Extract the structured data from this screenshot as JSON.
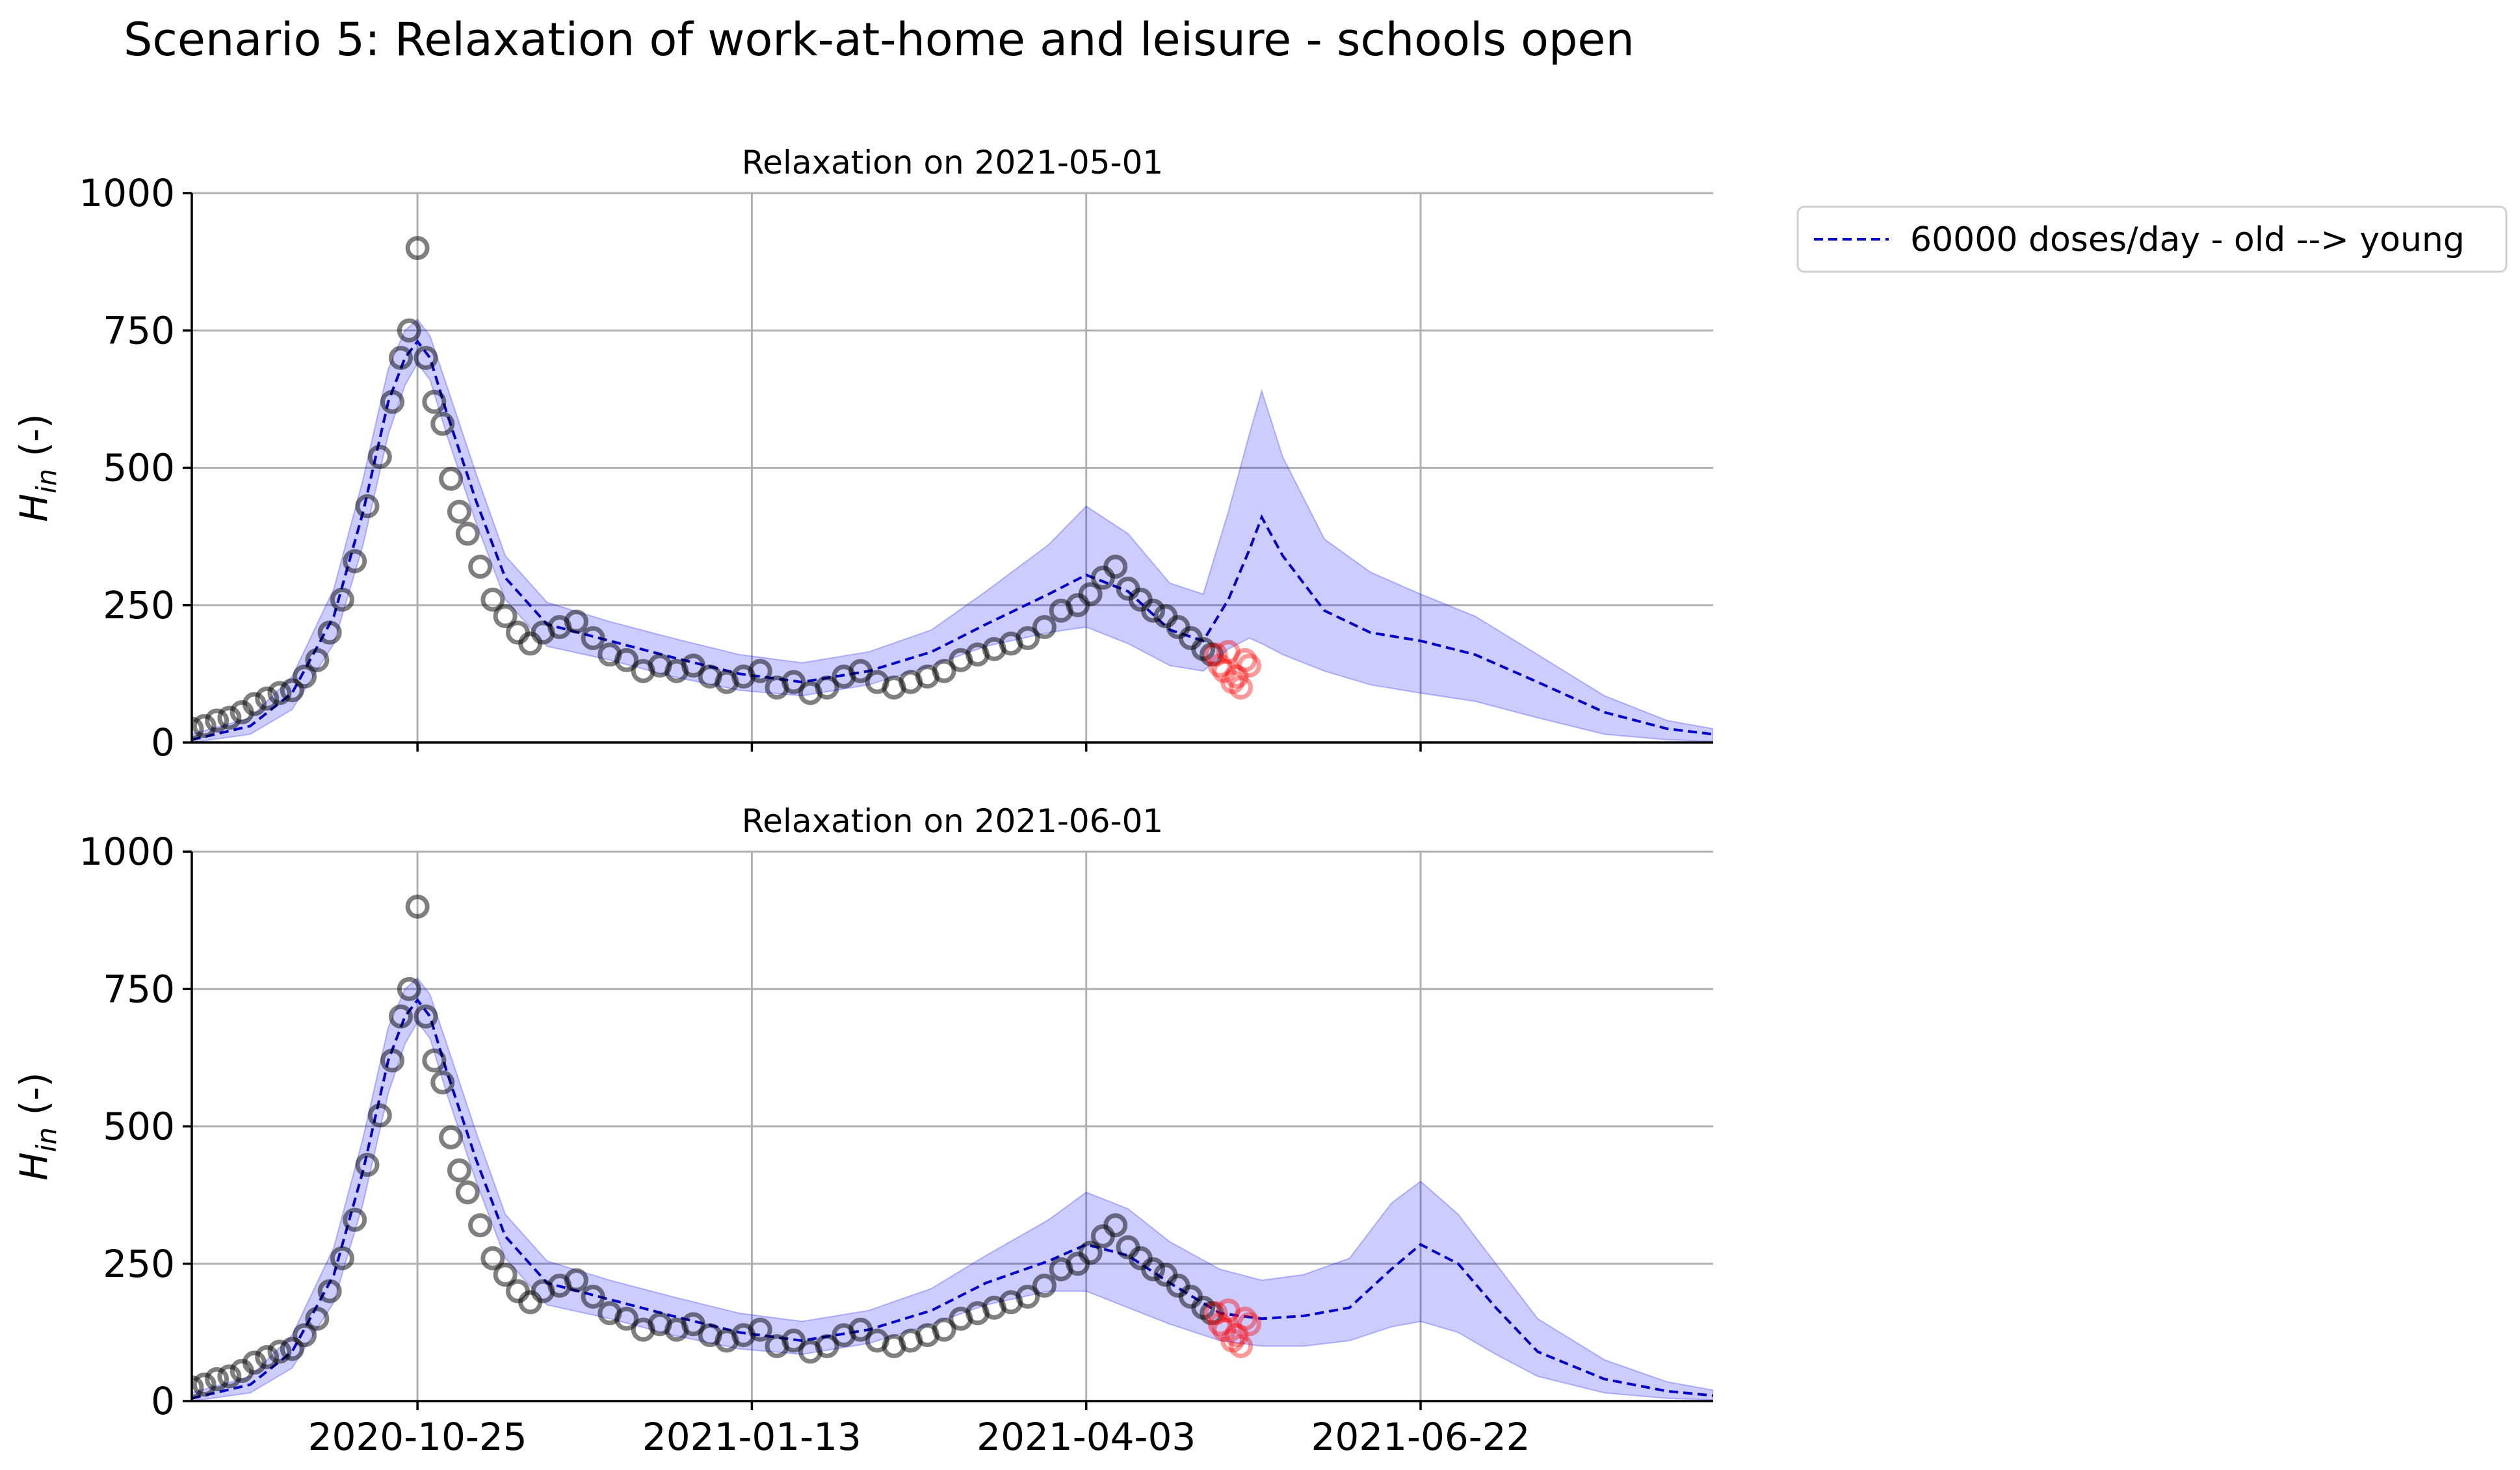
{
  "figure": {
    "title": "Scenario 5: Relaxation of work-at-home and leisure - schools open",
    "legend": {
      "placement": "upper-right-outside",
      "entries": [
        "60000 doses/day - old --> young"
      ]
    },
    "colors": {
      "model": "#0000cc",
      "band": "#0000ff",
      "observed": "#000000",
      "observed_new": "#ff0000",
      "grid": "#b0b0b0"
    }
  },
  "chart_data": [
    {
      "type": "line",
      "title": "Relaxation on 2021-05-01",
      "xlabel": "",
      "ylabel": "H_in (-)",
      "ylabel_main": "H",
      "ylabel_sub": "in",
      "ylabel_unit": " (-)",
      "xlim": [
        "2020-09-01",
        "2021-08-31"
      ],
      "ylim": [
        0,
        1000
      ],
      "yticks": [
        0,
        250,
        500,
        750,
        1000
      ],
      "xticks": [
        "2020-10-25",
        "2021-01-13",
        "2021-04-03",
        "2021-06-22"
      ],
      "show_xtick_labels": false,
      "grid": true,
      "series": [
        {
          "name": "60000 doses/day - old --> young",
          "style": "dashed",
          "x": [
            "2020-09-01",
            "2020-09-15",
            "2020-09-25",
            "2020-10-05",
            "2020-10-12",
            "2020-10-18",
            "2020-10-22",
            "2020-10-25",
            "2020-10-28",
            "2020-11-01",
            "2020-11-08",
            "2020-11-15",
            "2020-11-25",
            "2020-12-10",
            "2020-12-25",
            "2021-01-10",
            "2021-01-25",
            "2021-02-10",
            "2021-02-25",
            "2021-03-10",
            "2021-03-25",
            "2021-04-03",
            "2021-04-13",
            "2021-04-23",
            "2021-05-01",
            "2021-05-07",
            "2021-05-12",
            "2021-05-15",
            "2021-05-20",
            "2021-05-30",
            "2021-06-10",
            "2021-06-22",
            "2021-07-05",
            "2021-07-20",
            "2021-08-05",
            "2021-08-20",
            "2021-08-31"
          ],
          "y": [
            5,
            30,
            90,
            230,
            420,
            620,
            700,
            730,
            700,
            600,
            440,
            300,
            215,
            185,
            155,
            125,
            110,
            130,
            165,
            215,
            270,
            305,
            275,
            205,
            185,
            260,
            350,
            410,
            340,
            240,
            200,
            185,
            160,
            110,
            55,
            25,
            15
          ],
          "band_lower": [
            0,
            15,
            60,
            180,
            360,
            560,
            650,
            690,
            660,
            560,
            400,
            260,
            175,
            150,
            120,
            95,
            85,
            105,
            140,
            175,
            200,
            210,
            180,
            140,
            130,
            170,
            190,
            180,
            160,
            130,
            105,
            90,
            75,
            45,
            15,
            5,
            2
          ],
          "band_upper": [
            15,
            45,
            120,
            280,
            480,
            680,
            750,
            770,
            740,
            650,
            490,
            340,
            255,
            220,
            190,
            160,
            145,
            165,
            205,
            275,
            360,
            430,
            380,
            290,
            270,
            420,
            560,
            640,
            520,
            370,
            310,
            270,
            230,
            160,
            85,
            40,
            25
          ]
        }
      ],
      "observed": {
        "x": [
          "2020-09-01",
          "2020-09-04",
          "2020-09-07",
          "2020-09-10",
          "2020-09-13",
          "2020-09-16",
          "2020-09-19",
          "2020-09-22",
          "2020-09-25",
          "2020-09-28",
          "2020-10-01",
          "2020-10-04",
          "2020-10-07",
          "2020-10-10",
          "2020-10-13",
          "2020-10-16",
          "2020-10-19",
          "2020-10-21",
          "2020-10-23",
          "2020-10-25",
          "2020-10-27",
          "2020-10-29",
          "2020-10-31",
          "2020-11-02",
          "2020-11-04",
          "2020-11-06",
          "2020-11-09",
          "2020-11-12",
          "2020-11-15",
          "2020-11-18",
          "2020-11-21",
          "2020-11-24",
          "2020-11-28",
          "2020-12-02",
          "2020-12-06",
          "2020-12-10",
          "2020-12-14",
          "2020-12-18",
          "2020-12-22",
          "2020-12-26",
          "2020-12-30",
          "2021-01-03",
          "2021-01-07",
          "2021-01-11",
          "2021-01-15",
          "2021-01-19",
          "2021-01-23",
          "2021-01-27",
          "2021-01-31",
          "2021-02-04",
          "2021-02-08",
          "2021-02-12",
          "2021-02-16",
          "2021-02-20",
          "2021-02-24",
          "2021-02-28",
          "2021-03-04",
          "2021-03-08",
          "2021-03-12",
          "2021-03-16",
          "2021-03-20",
          "2021-03-24",
          "2021-03-28",
          "2021-04-01",
          "2021-04-04",
          "2021-04-07",
          "2021-04-10",
          "2021-04-13",
          "2021-04-16",
          "2021-04-19",
          "2021-04-22",
          "2021-04-25",
          "2021-04-28",
          "2021-05-01",
          "2021-05-03"
        ],
        "y": [
          25,
          30,
          40,
          45,
          55,
          70,
          80,
          90,
          95,
          120,
          150,
          200,
          260,
          330,
          430,
          520,
          620,
          700,
          750,
          900,
          700,
          620,
          580,
          480,
          420,
          380,
          320,
          260,
          230,
          200,
          180,
          200,
          210,
          220,
          190,
          160,
          150,
          130,
          140,
          130,
          140,
          120,
          110,
          120,
          130,
          100,
          110,
          90,
          100,
          120,
          130,
          110,
          100,
          110,
          120,
          130,
          150,
          160,
          170,
          180,
          190,
          210,
          240,
          250,
          270,
          300,
          320,
          280,
          260,
          240,
          230,
          210,
          190,
          170,
          160
        ]
      },
      "observed_new": {
        "x": [
          "2021-05-04",
          "2021-05-05",
          "2021-05-06",
          "2021-05-07",
          "2021-05-08",
          "2021-05-09",
          "2021-05-10",
          "2021-05-11",
          "2021-05-12"
        ],
        "y": [
          160,
          140,
          130,
          165,
          110,
          120,
          100,
          150,
          140
        ]
      }
    },
    {
      "type": "line",
      "title": "Relaxation on 2021-06-01",
      "xlabel": "",
      "ylabel": "H_in (-)",
      "ylabel_main": "H",
      "ylabel_sub": "in",
      "ylabel_unit": " (-)",
      "xlim": [
        "2020-09-01",
        "2021-08-31"
      ],
      "ylim": [
        0,
        1000
      ],
      "yticks": [
        0,
        250,
        500,
        750,
        1000
      ],
      "xticks": [
        "2020-10-25",
        "2021-01-13",
        "2021-04-03",
        "2021-06-22"
      ],
      "show_xtick_labels": true,
      "grid": true,
      "series": [
        {
          "name": "60000 doses/day - old --> young",
          "style": "dashed",
          "x": [
            "2020-09-01",
            "2020-09-15",
            "2020-09-25",
            "2020-10-05",
            "2020-10-12",
            "2020-10-18",
            "2020-10-22",
            "2020-10-25",
            "2020-10-28",
            "2020-11-01",
            "2020-11-08",
            "2020-11-15",
            "2020-11-25",
            "2020-12-10",
            "2020-12-25",
            "2021-01-10",
            "2021-01-25",
            "2021-02-10",
            "2021-02-25",
            "2021-03-10",
            "2021-03-25",
            "2021-04-03",
            "2021-04-13",
            "2021-04-23",
            "2021-05-05",
            "2021-05-15",
            "2021-05-25",
            "2021-06-05",
            "2021-06-15",
            "2021-06-22",
            "2021-07-01",
            "2021-07-10",
            "2021-07-20",
            "2021-08-05",
            "2021-08-20",
            "2021-08-31"
          ],
          "y": [
            5,
            30,
            90,
            230,
            420,
            620,
            700,
            730,
            700,
            600,
            440,
            300,
            215,
            185,
            155,
            125,
            110,
            130,
            165,
            215,
            255,
            285,
            265,
            215,
            160,
            150,
            155,
            170,
            240,
            285,
            250,
            170,
            90,
            40,
            18,
            10
          ],
          "band_lower": [
            0,
            15,
            60,
            180,
            360,
            560,
            650,
            690,
            660,
            560,
            400,
            260,
            175,
            150,
            120,
            95,
            85,
            105,
            140,
            175,
            200,
            200,
            170,
            140,
            110,
            100,
            100,
            110,
            135,
            145,
            125,
            85,
            45,
            15,
            5,
            2
          ],
          "band_upper": [
            15,
            45,
            120,
            280,
            480,
            680,
            750,
            770,
            740,
            650,
            490,
            340,
            255,
            220,
            190,
            160,
            145,
            165,
            205,
            265,
            330,
            380,
            350,
            290,
            240,
            220,
            230,
            260,
            360,
            400,
            340,
            250,
            150,
            75,
            35,
            20
          ]
        }
      ],
      "observed": {
        "x": [
          "2020-09-01",
          "2020-09-04",
          "2020-09-07",
          "2020-09-10",
          "2020-09-13",
          "2020-09-16",
          "2020-09-19",
          "2020-09-22",
          "2020-09-25",
          "2020-09-28",
          "2020-10-01",
          "2020-10-04",
          "2020-10-07",
          "2020-10-10",
          "2020-10-13",
          "2020-10-16",
          "2020-10-19",
          "2020-10-21",
          "2020-10-23",
          "2020-10-25",
          "2020-10-27",
          "2020-10-29",
          "2020-10-31",
          "2020-11-02",
          "2020-11-04",
          "2020-11-06",
          "2020-11-09",
          "2020-11-12",
          "2020-11-15",
          "2020-11-18",
          "2020-11-21",
          "2020-11-24",
          "2020-11-28",
          "2020-12-02",
          "2020-12-06",
          "2020-12-10",
          "2020-12-14",
          "2020-12-18",
          "2020-12-22",
          "2020-12-26",
          "2020-12-30",
          "2021-01-03",
          "2021-01-07",
          "2021-01-11",
          "2021-01-15",
          "2021-01-19",
          "2021-01-23",
          "2021-01-27",
          "2021-01-31",
          "2021-02-04",
          "2021-02-08",
          "2021-02-12",
          "2021-02-16",
          "2021-02-20",
          "2021-02-24",
          "2021-02-28",
          "2021-03-04",
          "2021-03-08",
          "2021-03-12",
          "2021-03-16",
          "2021-03-20",
          "2021-03-24",
          "2021-03-28",
          "2021-04-01",
          "2021-04-04",
          "2021-04-07",
          "2021-04-10",
          "2021-04-13",
          "2021-04-16",
          "2021-04-19",
          "2021-04-22",
          "2021-04-25",
          "2021-04-28",
          "2021-05-01",
          "2021-05-03"
        ],
        "y": [
          25,
          30,
          40,
          45,
          55,
          70,
          80,
          90,
          95,
          120,
          150,
          200,
          260,
          330,
          430,
          520,
          620,
          700,
          750,
          900,
          700,
          620,
          580,
          480,
          420,
          380,
          320,
          260,
          230,
          200,
          180,
          200,
          210,
          220,
          190,
          160,
          150,
          130,
          140,
          130,
          140,
          120,
          110,
          120,
          130,
          100,
          110,
          90,
          100,
          120,
          130,
          110,
          100,
          110,
          120,
          130,
          150,
          160,
          170,
          180,
          190,
          210,
          240,
          250,
          270,
          300,
          320,
          280,
          260,
          240,
          230,
          210,
          190,
          170,
          160
        ]
      },
      "observed_new": {
        "x": [
          "2021-05-04",
          "2021-05-05",
          "2021-05-06",
          "2021-05-07",
          "2021-05-08",
          "2021-05-09",
          "2021-05-10",
          "2021-05-11",
          "2021-05-12"
        ],
        "y": [
          160,
          140,
          130,
          165,
          110,
          120,
          100,
          150,
          140
        ]
      }
    }
  ]
}
